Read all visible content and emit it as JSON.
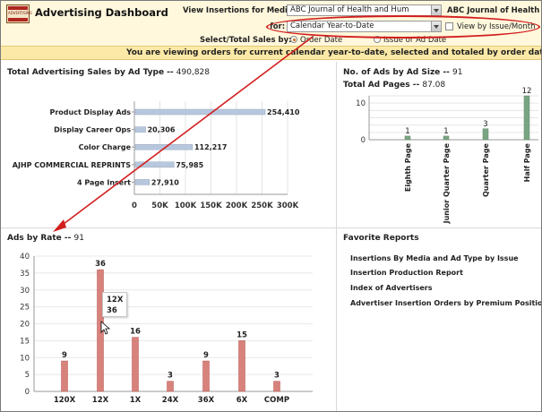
{
  "header": {
    "logo_text": "ADVERTISING",
    "title": "Advertising Dashboard",
    "media_label": "View Insertions for Media:",
    "media_value": "ABC Journal of Health and Hum",
    "media_trail": "ABC Journal of Health a",
    "for_label": "for:",
    "period_value": "Calendar Year-to-Date",
    "view_by_label": "View by Issue/Month",
    "select_label": "Select/Total Sales by:",
    "radio_order": "Order Date",
    "radio_issue": "Issue or Ad Date"
  },
  "banner": "You are viewing orders for current calendar year-to-date, selected and totaled by order date",
  "sales_by_type": {
    "title": "Total Advertising Sales by Ad Type --",
    "total": "490,828",
    "chart_data": {
      "type": "bar",
      "orientation": "horizontal",
      "categories": [
        "Product Display Ads",
        "Display Career Ops",
        "Color Charge",
        "AJHP COMMERCIAL REPRINTS",
        "4 Page Insert"
      ],
      "values": [
        254410,
        20306,
        112217,
        75985,
        27910
      ],
      "value_labels": [
        "254,410",
        "20,306",
        "112,217",
        "75,985",
        "27,910"
      ],
      "ticks": [
        "0",
        "50K",
        "100K",
        "150K",
        "200K",
        "250K",
        "300K"
      ],
      "xlim": [
        0,
        300000
      ],
      "color": "#b7c7dd"
    }
  },
  "ad_size": {
    "title": "No. of Ads by Ad Size --",
    "count": "91",
    "pages_label": "Total Ad Pages --",
    "pages": "87.08",
    "chart_data": {
      "type": "bar",
      "categories": [
        "Eighth Page",
        "Junior Quarter Page",
        "Quarter Page",
        "Half Page"
      ],
      "values": [
        1,
        1,
        3,
        12
      ],
      "value_labels": [
        "1",
        "1",
        "3",
        "12"
      ],
      "ticks": [
        "0",
        "10"
      ],
      "ylim": [
        0,
        12
      ],
      "color": "#7aa583"
    }
  },
  "ads_by_rate": {
    "title": "Ads by Rate --",
    "count": "91",
    "chart_data": {
      "type": "bar",
      "categories": [
        "120X",
        "12X",
        "1X",
        "24X",
        "36X",
        "6X",
        "COMP"
      ],
      "values": [
        9,
        36,
        16,
        3,
        9,
        15,
        3
      ],
      "value_labels": [
        "9",
        "36",
        "16",
        "3",
        "9",
        "15",
        "3"
      ],
      "ticks": [
        "0",
        "5",
        "10",
        "15",
        "20",
        "25",
        "30",
        "35",
        "40"
      ],
      "ylim": [
        0,
        40
      ],
      "color": "#d8827c"
    },
    "tooltip": {
      "category": "12X",
      "value": "36"
    }
  },
  "favorites": {
    "title": "Favorite Reports",
    "items": [
      "Insertions By Media and Ad Type by Issue",
      "Insertion Production Report",
      "Index of Advertisers",
      "Advertiser Insertion Orders by Premium Position"
    ]
  },
  "colors": {
    "annotation": "#d21e1e",
    "banner": "#fde9a7",
    "header": "#fff8dd"
  }
}
